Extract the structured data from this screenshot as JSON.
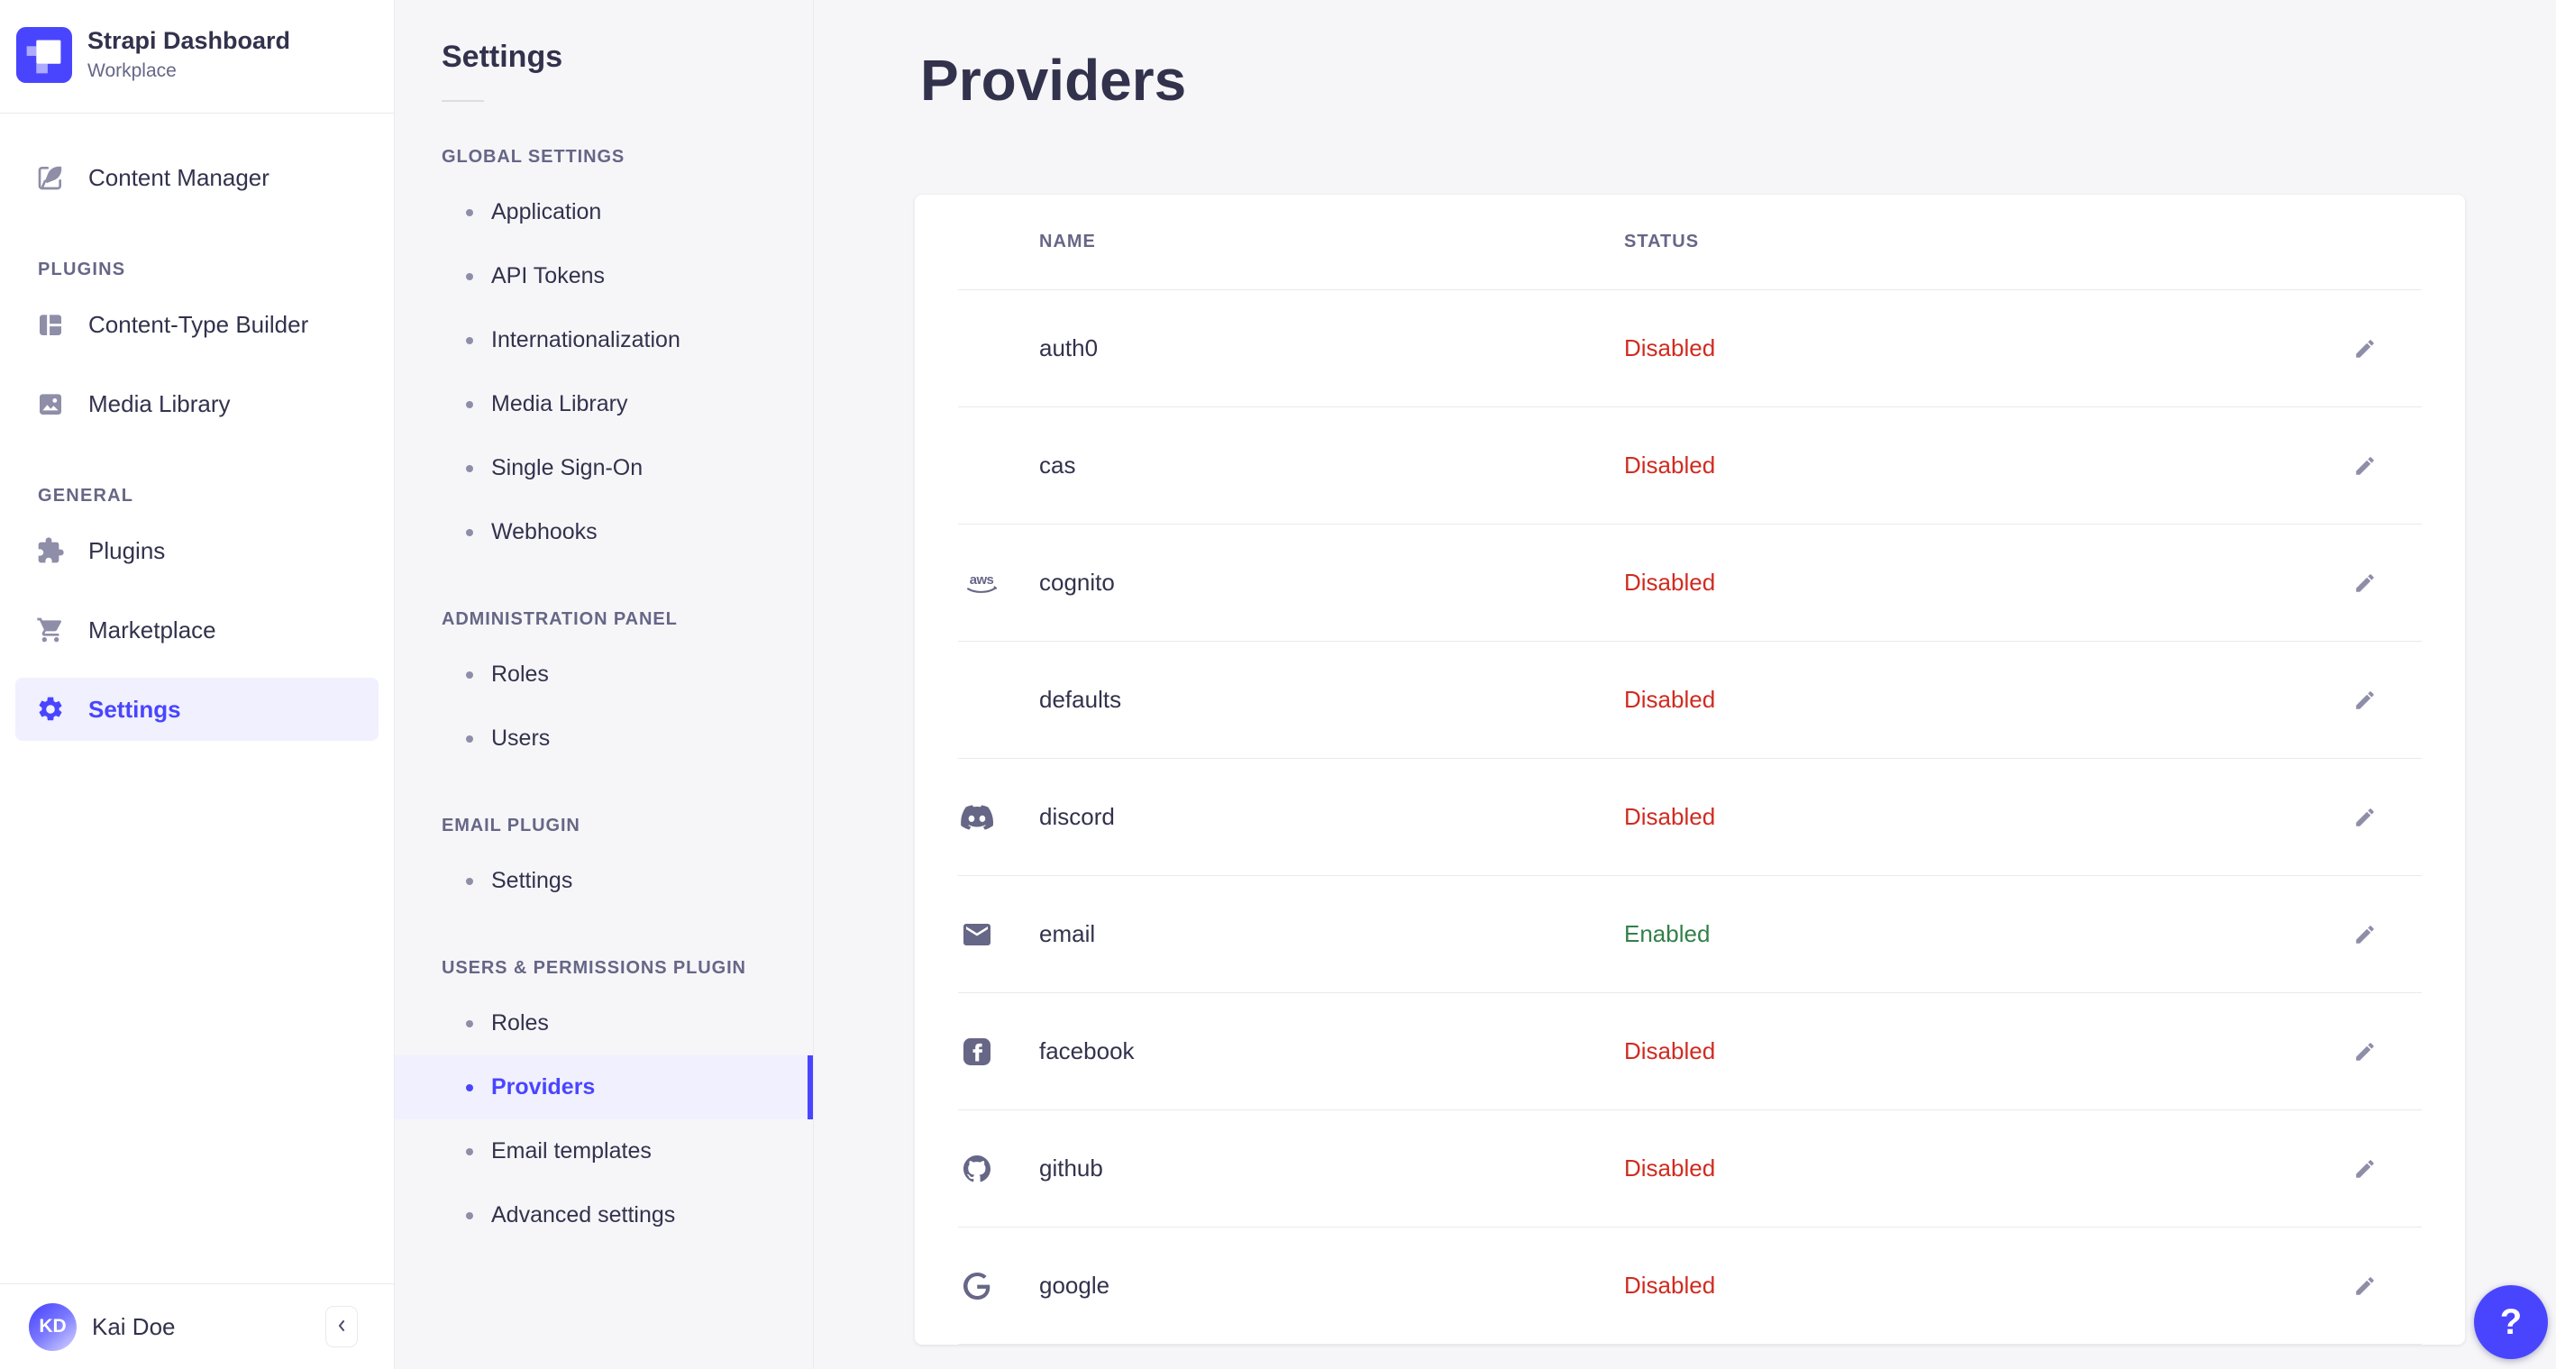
{
  "app": {
    "title": "Strapi Dashboard",
    "workspace": "Workplace"
  },
  "colors": {
    "primary": "#4945ff",
    "active_bg": "#f0f0ff",
    "danger": "#d02b20",
    "success": "#328048",
    "border": "#eaeaef"
  },
  "sidebar": {
    "sections": [
      {
        "label": "",
        "items": [
          {
            "label": "Content Manager",
            "icon": "feather-pen-icon",
            "active": false
          }
        ]
      },
      {
        "label": "PLUGINS",
        "items": [
          {
            "label": "Content-Type Builder",
            "icon": "layout-grid-icon",
            "active": false
          },
          {
            "label": "Media Library",
            "icon": "image-icon",
            "active": false
          }
        ]
      },
      {
        "label": "GENERAL",
        "items": [
          {
            "label": "Plugins",
            "icon": "puzzle-icon",
            "active": false
          },
          {
            "label": "Marketplace",
            "icon": "cart-icon",
            "active": false
          },
          {
            "label": "Settings",
            "icon": "gear-icon",
            "active": true
          }
        ]
      }
    ],
    "user": {
      "name": "Kai Doe",
      "initials": "KD"
    }
  },
  "subnav": {
    "title": "Settings",
    "sections": [
      {
        "label": "GLOBAL SETTINGS",
        "items": [
          {
            "label": "Application"
          },
          {
            "label": "API Tokens"
          },
          {
            "label": "Internationalization"
          },
          {
            "label": "Media Library"
          },
          {
            "label": "Single Sign-On"
          },
          {
            "label": "Webhooks"
          }
        ]
      },
      {
        "label": "ADMINISTRATION PANEL",
        "items": [
          {
            "label": "Roles"
          },
          {
            "label": "Users"
          }
        ]
      },
      {
        "label": "EMAIL PLUGIN",
        "items": [
          {
            "label": "Settings"
          }
        ]
      },
      {
        "label": "USERS & PERMISSIONS PLUGIN",
        "items": [
          {
            "label": "Roles"
          },
          {
            "label": "Providers",
            "active": true
          },
          {
            "label": "Email templates"
          },
          {
            "label": "Advanced settings"
          }
        ]
      }
    ]
  },
  "page": {
    "title": "Providers"
  },
  "table": {
    "columns": [
      "NAME",
      "STATUS"
    ],
    "rows": [
      {
        "name": "auth0",
        "icon": "",
        "status": "Disabled"
      },
      {
        "name": "cas",
        "icon": "",
        "status": "Disabled"
      },
      {
        "name": "cognito",
        "icon": "aws-icon",
        "status": "Disabled"
      },
      {
        "name": "defaults",
        "icon": "",
        "status": "Disabled"
      },
      {
        "name": "discord",
        "icon": "discord-icon",
        "status": "Disabled"
      },
      {
        "name": "email",
        "icon": "email-icon",
        "status": "Enabled"
      },
      {
        "name": "facebook",
        "icon": "facebook-icon",
        "status": "Disabled"
      },
      {
        "name": "github",
        "icon": "github-icon",
        "status": "Disabled"
      },
      {
        "name": "google",
        "icon": "google-icon",
        "status": "Disabled"
      }
    ]
  },
  "help": {
    "label": "?"
  }
}
